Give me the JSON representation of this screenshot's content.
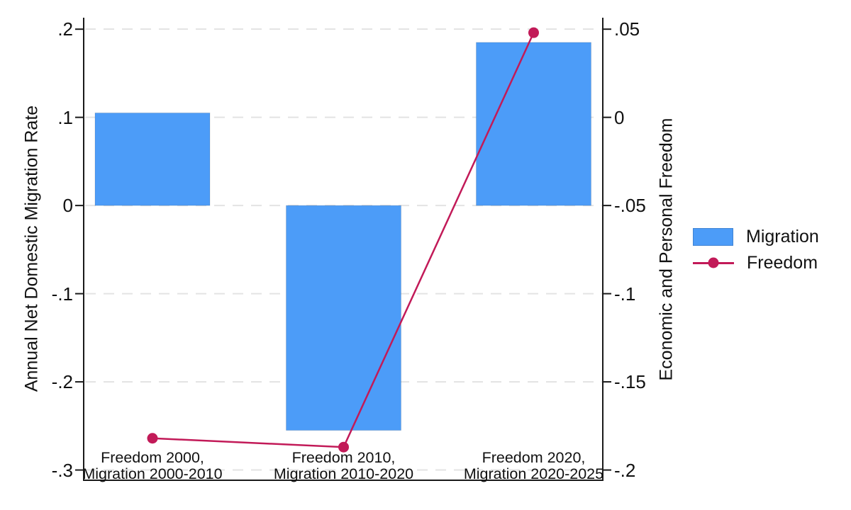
{
  "chart_data": {
    "type": "combo-bar-line-dual-axis",
    "title": "",
    "categories": [
      "Freedom 2000,\nMigration 2000-2010",
      "Freedom 2010,\nMigration 2010-2020",
      "Freedom 2020,\nMigration 2020-2025"
    ],
    "series": [
      {
        "name": "Migration",
        "type": "bar",
        "axis": "left",
        "color": "#4C9CF8",
        "values": [
          0.105,
          -0.255,
          0.185
        ]
      },
      {
        "name": "Freedom",
        "type": "line",
        "axis": "right",
        "color": "#C21A58",
        "values": [
          -0.182,
          -0.187,
          0.048
        ]
      }
    ],
    "left_axis": {
      "label": "Annual Net Domestic Migration Rate",
      "ticks": [
        0.2,
        0.1,
        0,
        -0.1,
        -0.2,
        -0.3
      ],
      "tick_labels": [
        ".2",
        ".1",
        "0",
        "-.1",
        "-.2",
        "-.3"
      ],
      "range": [
        -0.3116,
        0.213
      ]
    },
    "right_axis": {
      "label": "Economic and Personal Freedom",
      "ticks": [
        0.05,
        0,
        -0.05,
        -0.1,
        -0.15,
        -0.2
      ],
      "tick_labels": [
        ".05",
        "0",
        "-.05",
        "-.1",
        "-.15",
        "-.2"
      ],
      "range": [
        -0.2058,
        0.0565
      ]
    },
    "legend": {
      "position": "right",
      "entries": [
        {
          "label": "Migration",
          "type": "bar"
        },
        {
          "label": "Freedom",
          "type": "line"
        }
      ]
    },
    "grid": {
      "show": true,
      "style": "dashed",
      "color": "#e3e3e3"
    },
    "spine_color": "#1a1a1a",
    "background": "#ffffff"
  }
}
